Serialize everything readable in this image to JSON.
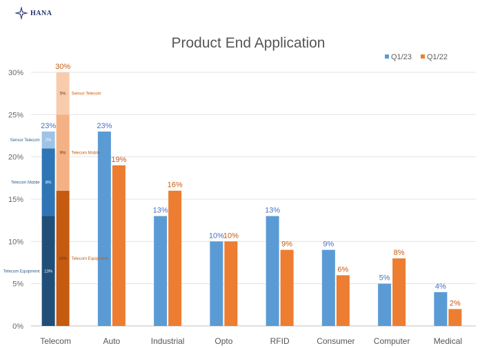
{
  "logo": {
    "text": "HANA",
    "icon": "hana-star-logo"
  },
  "colors": {
    "q123": "#5b9bd5",
    "q122": "#ed7d31",
    "telecom_equipment_23": "#1f4e79",
    "telecom_mobile_23": "#2e75b6",
    "sensor_telecom_23": "#9dc3e6",
    "telecom_equipment_22": "#c55a11",
    "telecom_mobile_22": "#f4b183",
    "sensor_telecom_22": "#f8cbad",
    "grid": "#e3e3e3",
    "q123_label": "#4472c4",
    "q122_label": "#c55a11"
  },
  "chart_data": {
    "type": "bar",
    "title": "Product End Application",
    "xlabel": "",
    "ylabel": "",
    "ylim": [
      0,
      30
    ],
    "yticks": [
      "0%",
      "5%",
      "10%",
      "15%",
      "20%",
      "25%",
      "30%"
    ],
    "grid": true,
    "legend_position": "top-right",
    "categories": [
      "Telecom",
      "Auto",
      "Industrial",
      "Opto",
      "RFID",
      "Consumer",
      "Computer",
      "Medical"
    ],
    "series": [
      {
        "name": "Q1/23",
        "values": [
          23,
          23,
          13,
          10,
          13,
          9,
          5,
          4
        ],
        "labels": [
          "23%",
          "23%",
          "13%",
          "10%",
          "13%",
          "9%",
          "5%",
          "4%"
        ]
      },
      {
        "name": "Q1/22",
        "values": [
          30,
          19,
          16,
          10,
          9,
          6,
          8,
          2
        ],
        "labels": [
          "30%",
          "19%",
          "16%",
          "10%",
          "9%",
          "6%",
          "8%",
          "2%"
        ]
      }
    ],
    "telecom_breakdown": {
      "Q1/23": [
        {
          "name": "Telecom Equipment",
          "value": 13,
          "label": "13%"
        },
        {
          "name": "Telecom Mobile",
          "value": 8,
          "label": "8%"
        },
        {
          "name": "Sensor Telecom",
          "value": 2,
          "label": "2%"
        }
      ],
      "Q1/22": [
        {
          "name": "Telecom Equipment",
          "value": 16,
          "label": "16%"
        },
        {
          "name": "Telecom Mobile",
          "value": 9,
          "label": "9%"
        },
        {
          "name": "Sensor Telecom",
          "value": 5,
          "label": "5%"
        }
      ]
    }
  }
}
